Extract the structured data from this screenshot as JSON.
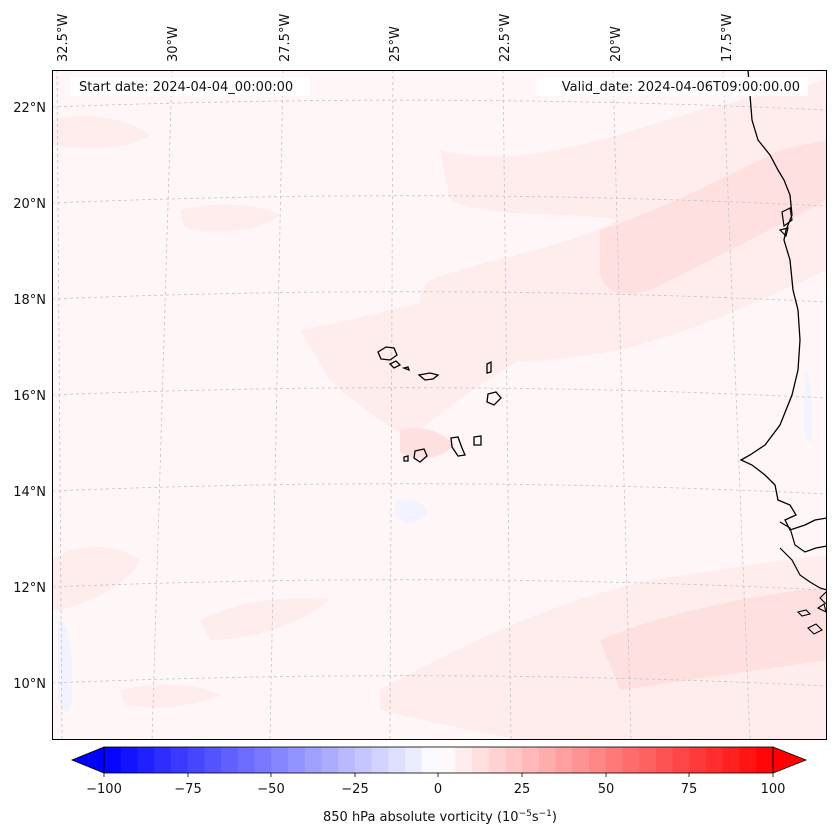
{
  "map": {
    "start_label": "Start date: 2024-04-04_00:00:00",
    "valid_label": "Valid_date: 2024-04-06T09:00:00.00",
    "lon_labels": [
      "32.5°W",
      "30°W",
      "27.5°W",
      "25°W",
      "22.5°W",
      "20°W",
      "17.5°W"
    ],
    "lat_labels": [
      "22°N",
      "20°N",
      "18°N",
      "16°N",
      "14°N",
      "12°N",
      "10°N"
    ]
  },
  "colorbar": {
    "ticks": [
      "−100",
      "−75",
      "−50",
      "−25",
      "0",
      "25",
      "50",
      "75",
      "100"
    ],
    "label_main": "850 hPa absolute vorticity (10",
    "label_exp1": "−5",
    "label_mid": "s",
    "label_exp2": "−1",
    "label_end": ")",
    "min_color": "#0000ff",
    "mid_color": "#ffffff",
    "max_color": "#ff0000"
  },
  "colors": {
    "frame": "#000000",
    "gridline": "#bdbdbd",
    "coast": "#000000",
    "field_base": "#fff7f7",
    "field_light": "#ffeaea",
    "field_medium": "#ffdede",
    "field_blue": "#f3f4ff"
  }
}
